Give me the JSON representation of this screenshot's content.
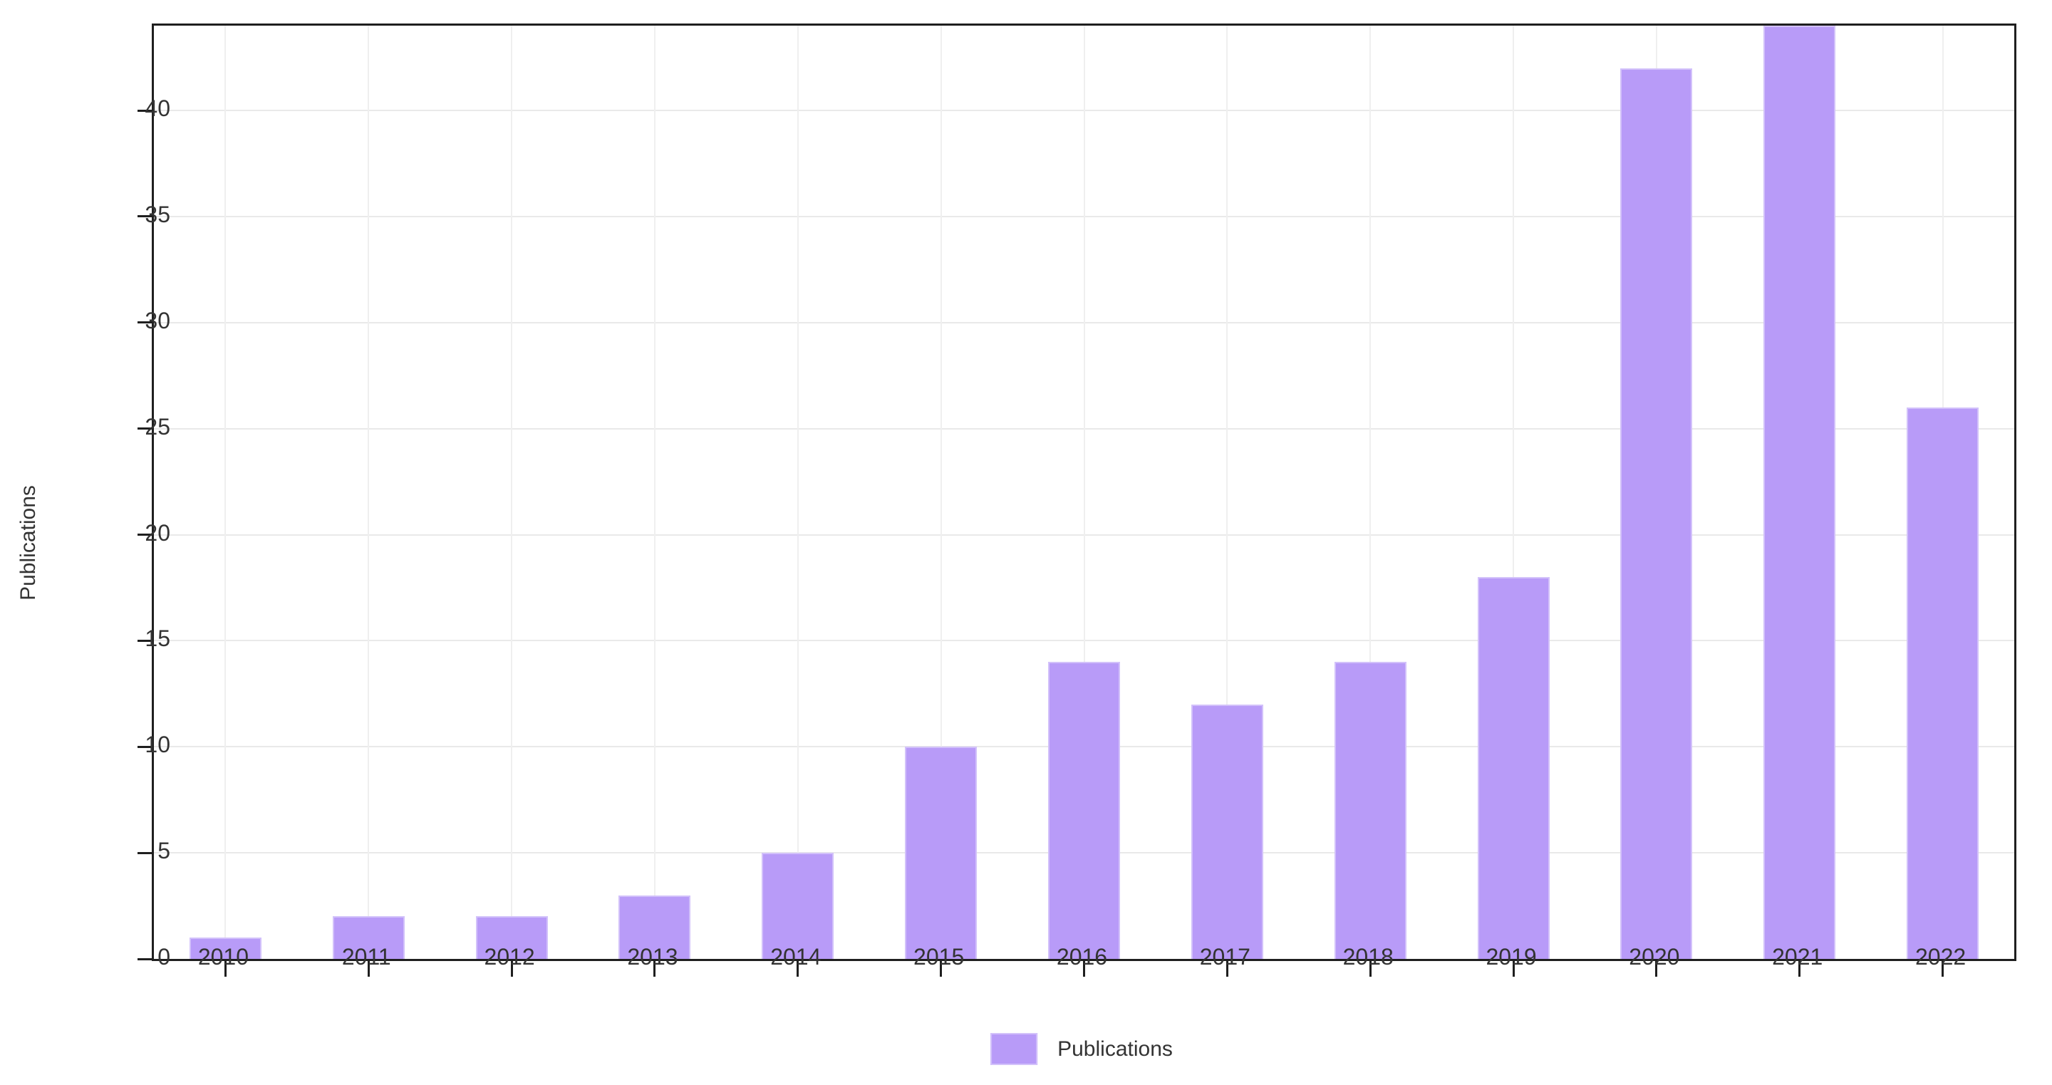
{
  "chart_data": {
    "type": "bar",
    "title": "",
    "categories": [
      "2010",
      "2011",
      "2012",
      "2013",
      "2014",
      "2015",
      "2016",
      "2017",
      "2018",
      "2019",
      "2020",
      "2021",
      "2022"
    ],
    "series": [
      {
        "name": "Publications",
        "values": [
          1,
          2,
          2,
          3,
          5,
          10,
          14,
          12,
          14,
          18,
          42,
          44,
          26
        ]
      }
    ],
    "xlabel": "",
    "ylabel": "Publications",
    "ylim": [
      0,
      44
    ],
    "yticks": [
      0,
      5,
      10,
      15,
      20,
      25,
      30,
      35,
      40
    ],
    "grid": true,
    "legend": {
      "position": "bottom-center",
      "entries": [
        "Publications"
      ]
    },
    "colors": {
      "bar_fill": "#b89bf8",
      "bar_edge": "#d2c1fa",
      "axis_line": "#1f1f1f",
      "gridline": "#ebebeb",
      "tick_text": "#333333"
    }
  }
}
